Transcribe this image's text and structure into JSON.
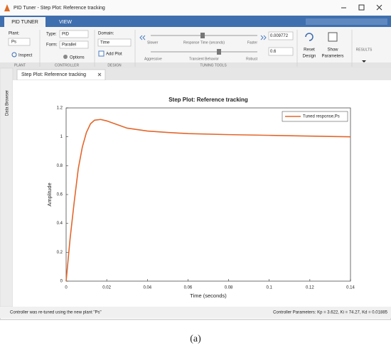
{
  "window": {
    "title": "PID Tuner - Step Plot: Reference tracking"
  },
  "tabs": [
    "PID TUNER",
    "VIEW"
  ],
  "toolstrip": {
    "plant_label": "Plant:",
    "plant": "Ps",
    "inspect": "Inspect",
    "type_label": "Type:",
    "type": "PID",
    "form_label": "Form:",
    "form": "Parallel",
    "options": "Options",
    "domain_label": "Domain:",
    "domain": "Time",
    "add_plot": "Add Plot",
    "slider1": {
      "left": "Slower",
      "center": "Response Time (seconds)",
      "right": "Faster",
      "value": "0.009772"
    },
    "slider2": {
      "left": "Aggressive",
      "center": "Transient Behavior",
      "right": "Robust",
      "value": "0.6"
    },
    "reset": [
      "Reset",
      "Design"
    ],
    "show": [
      "Show",
      "Parameters"
    ],
    "results": "RESULTS",
    "sections": [
      "PLANT",
      "CONTROLLER",
      "DESIGN",
      "TUNING TOOLS"
    ]
  },
  "document_tab": "Step Plot: Reference tracking",
  "side_panel": "Data Browser",
  "chart_data": {
    "type": "line",
    "title": "Step Plot: Reference tracking",
    "xlabel": "Time (seconds)",
    "ylabel": "Amplitude",
    "x": [
      0,
      0.002,
      0.004,
      0.006,
      0.008,
      0.01,
      0.012,
      0.014,
      0.017,
      0.02,
      0.025,
      0.03,
      0.04,
      0.05,
      0.06,
      0.08,
      0.1,
      0.12,
      0.14
    ],
    "series": [
      {
        "name": "Tuned response,Ps",
        "color": "#e3662b",
        "values": [
          0,
          0.3,
          0.55,
          0.78,
          0.93,
          1.03,
          1.09,
          1.115,
          1.12,
          1.11,
          1.085,
          1.06,
          1.04,
          1.03,
          1.022,
          1.015,
          1.01,
          1.005,
          1.0
        ]
      }
    ],
    "xlim": [
      0,
      0.14
    ],
    "xticks": [
      0,
      0.02,
      0.04,
      0.06,
      0.08,
      0.1,
      0.12,
      0.14
    ],
    "ylim": [
      0,
      1.2
    ],
    "yticks": [
      0,
      0.2,
      0.4,
      0.6,
      0.8,
      1,
      1.2
    ],
    "legend": "upper right"
  },
  "status": {
    "left": "Controller was re-tuned using the new plant \"Ps\"",
    "right": "Controller Parameters: Kp = 3.622, Ki = 74.27, Kd = 0.01885"
  },
  "caption": "(a)"
}
